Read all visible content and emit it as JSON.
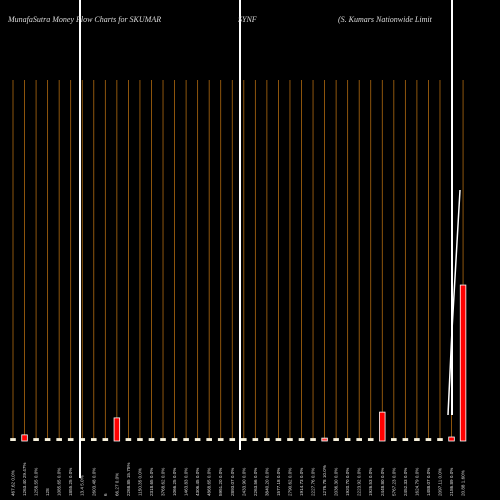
{
  "chart_data": {
    "type": "bar",
    "title": "MunafaSutra  Money Flow  Charts for SKUMAR",
    "symbol": "SYNF",
    "subtitle": "(S. Kumars Nationwide   Limit",
    "ylim": [
      0,
      100
    ],
    "categories": [
      "467.62 0.0%",
      "1263.40 29.47%",
      "1258.55 0.0%",
      "128",
      "1085.65 0.0%",
      "1855.25 0.0%",
      "13.4 5.0%",
      "2603.48 0.0%",
      "6",
      "66.27 0.0%",
      "2268.85 15.75%",
      "1150.35 0.0%",
      "2318.65 0.0%",
      "3768.62 0.0%",
      "1066.25 0.0%",
      "1463.83 0.0%",
      "4306.45 0.0%",
      "4868.65 0.0%",
      "5951.20 0.0%",
      "2893.07 0.0%",
      "2433.90 0.0%",
      "2263.56 0.0%",
      "3840.20 0.0%",
      "1577.18 0.0%",
      "2790.62 0.0%",
      "1914.73 0.0%",
      "2227.76 0.0%",
      "1276.78 10.0%",
      "2036.30 0.0%",
      "1920.70 0.0%",
      "2223.92 0.0%",
      "1926.53 0.0%",
      "2448.80 0.0%",
      "5767.23 0.0%",
      "2452.33 0.0%",
      "1624.79 0.0%",
      "1488.07 0.0%",
      "2097.11 0.0%",
      "2186.89 0.0%",
      "20.88 1.60%"
    ],
    "values": [
      0.8,
      1.7,
      0.8,
      0.8,
      0.8,
      0.8,
      0.8,
      0.8,
      0.8,
      6.4,
      0.8,
      0.8,
      0.8,
      0.8,
      0.8,
      0.8,
      0.8,
      0.8,
      0.8,
      0.8,
      0.8,
      0.8,
      0.8,
      0.8,
      0.8,
      0.8,
      0.8,
      0.8,
      0.8,
      0.8,
      0.8,
      0.8,
      8.0,
      0.8,
      0.8,
      0.8,
      0.8,
      0.8,
      1.1,
      43.2
    ],
    "colors": [
      "#f5f0dc",
      "#ff0000",
      "#f5f0dc",
      "#f5f0dc",
      "#f5f0dc",
      "#f5f0dc",
      "#f5f0dc",
      "#f5f0dc",
      "#f5f0dc",
      "#ff0000",
      "#f5f0dc",
      "#f5f0dc",
      "#f5f0dc",
      "#f5f0dc",
      "#f5f0dc",
      "#f5f0dc",
      "#f5f0dc",
      "#f5f0dc",
      "#f5f0dc",
      "#f5f0dc",
      "#f5f0dc",
      "#f5f0dc",
      "#f5f0dc",
      "#f5f0dc",
      "#f5f0dc",
      "#f5f0dc",
      "#f5f0dc",
      "#ff4444",
      "#f5f0dc",
      "#f5f0dc",
      "#f5f0dc",
      "#f5f0dc",
      "#ff0000",
      "#f5f0dc",
      "#f5f0dc",
      "#f5f0dc",
      "#f5f0dc",
      "#f5f0dc",
      "#ff0000",
      "#ff0000"
    ],
    "grid_color": "#b06a10"
  }
}
